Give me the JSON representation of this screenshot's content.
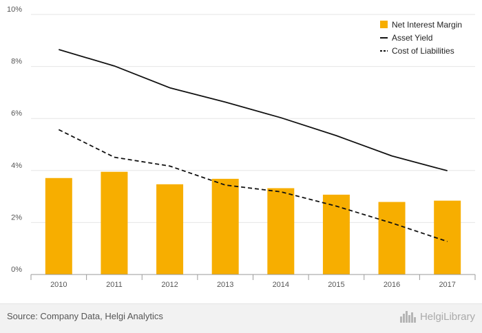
{
  "chart_data": {
    "type": "bar",
    "categories": [
      "2010",
      "2011",
      "2012",
      "2013",
      "2014",
      "2015",
      "2016",
      "2017"
    ],
    "series": [
      {
        "name": "Net Interest Margin",
        "kind": "bar",
        "color": "#f7ae00",
        "values": [
          3.71,
          3.95,
          3.47,
          3.68,
          3.32,
          3.07,
          2.79,
          2.84
        ]
      },
      {
        "name": "Asset Yield",
        "kind": "line",
        "style": "solid",
        "color": "#111111",
        "values": [
          8.65,
          8.02,
          7.18,
          6.63,
          6.03,
          5.34,
          4.56,
          3.99
        ]
      },
      {
        "name": "Cost of Liabilities",
        "kind": "line",
        "style": "dashed",
        "color": "#111111",
        "values": [
          5.57,
          4.51,
          4.17,
          3.44,
          3.18,
          2.63,
          1.98,
          1.27
        ]
      }
    ],
    "y_ticks": [
      "0%",
      "2%",
      "4%",
      "6%",
      "8%",
      "10%"
    ],
    "ylim": [
      0,
      10
    ],
    "grid": true,
    "legend_position": "top-right"
  },
  "footer": {
    "source": "Source: Company Data, Helgi Analytics",
    "brand": "HelgiLibrary",
    "brand_logo_icon": "skyline-logo-icon"
  }
}
